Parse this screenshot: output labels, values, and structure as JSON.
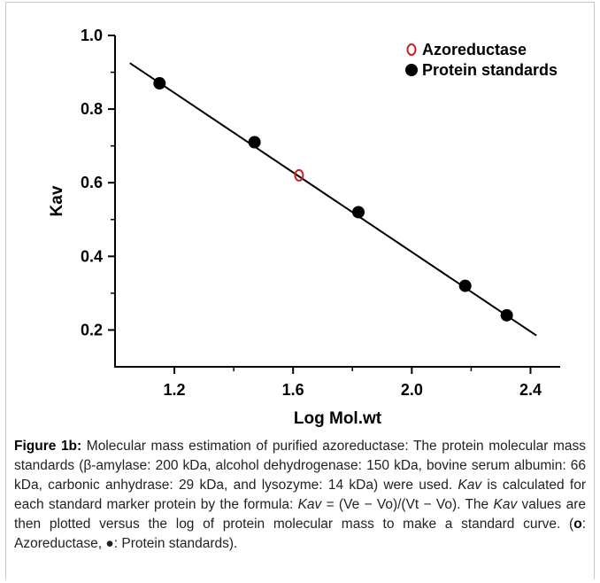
{
  "chart_data": {
    "type": "scatter",
    "xlabel": "Log Mol.wt",
    "ylabel": "Kav",
    "xlim": [
      1.0,
      2.5
    ],
    "ylim": [
      0.1,
      1.0
    ],
    "xticks": [
      "1.2",
      "1.6",
      "2.0",
      "2.4"
    ],
    "yticks": [
      "0.2",
      "0.4",
      "0.6",
      "0.8",
      "1.0"
    ],
    "legend_position": "top-right",
    "grid": false,
    "series": [
      {
        "name": "Azoreductase",
        "marker": "open-circle",
        "color": "#d02020",
        "points": [
          {
            "x": 1.62,
            "y": 0.62
          }
        ]
      },
      {
        "name": "Protein standards",
        "marker": "filled-circle",
        "color": "#000000",
        "points": [
          {
            "x": 1.15,
            "y": 0.87
          },
          {
            "x": 1.47,
            "y": 0.71
          },
          {
            "x": 1.82,
            "y": 0.52
          },
          {
            "x": 2.18,
            "y": 0.32
          },
          {
            "x": 2.32,
            "y": 0.24
          }
        ]
      }
    ],
    "fit_line": {
      "x": [
        1.05,
        2.42
      ],
      "y": [
        0.925,
        0.185
      ]
    }
  },
  "caption": {
    "label": "Figure 1b:",
    "text_part1": " Molecular mass estimation of purified azoreductase: The protein molecular mass standards (β-amylase: 200 kDa, alcohol dehydrogenase: 150 kDa, bovine serum albumin: 66 kDa, carbonic anhydrase: 29 kDa, and lysozyme: 14 kDa) were used. ",
    "kav1": "Kav",
    "text_part2": " is calculated for each standard marker protein by the formula: ",
    "kav2": "Kav",
    "text_part3": " = (Ve − Vo)/(Vt − Vo). The ",
    "kav3": "Kav",
    "text_part4": " values are then plotted versus the log of protein molecular mass to make a standard curve. (",
    "legend_o": "o",
    "text_part5": ": Azoreductase, ●: Protein standards)."
  }
}
